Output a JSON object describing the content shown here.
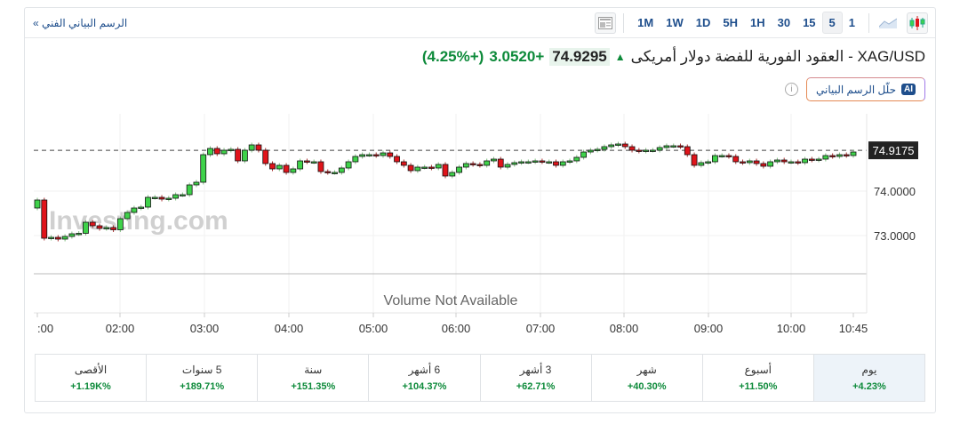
{
  "header": {
    "technical_chart_link": "الرسم البياني الفني »",
    "timeframes": [
      "1M",
      "1W",
      "1D",
      "5H",
      "1H",
      "30",
      "15",
      "5",
      "1"
    ],
    "active_timeframe": "5"
  },
  "instrument": {
    "title": "XAG/USD - العقود الفورية للفضة دولار أمريكى",
    "price": "74.9295",
    "change": "+3.0520",
    "change_pct": "(+4.25%)",
    "direction_icon": "arrow-up-icon"
  },
  "ai_button": {
    "badge": "AI",
    "label": "حلّل الرسم البياني"
  },
  "colors": {
    "up": "#0d8a3a",
    "candle_up": "#3fd24a",
    "candle_down": "#e0141b",
    "link": "#1e4e8c"
  },
  "chart_data": {
    "type": "candlestick",
    "current_price_label": "74.9175",
    "current_price": 74.9175,
    "y_ticks": [
      {
        "value": 74,
        "label": "74.0000"
      },
      {
        "value": 73,
        "label": "73.0000"
      }
    ],
    "ylim": [
      72.14,
      75.74
    ],
    "x_ticks": [
      ":00",
      "02:00",
      "03:00",
      "04:00",
      "05:00",
      "06:00",
      "07:00",
      "08:00",
      "09:00",
      "10:00",
      "10:45"
    ],
    "volume_text": "Volume Not Available",
    "watermark": "Investing.com",
    "first_open": 73.62,
    "closes": [
      73.8,
      72.94,
      72.96,
      72.92,
      72.98,
      73.04,
      73.05,
      73.3,
      73.22,
      73.16,
      73.18,
      73.13,
      73.38,
      73.52,
      73.62,
      73.64,
      73.86,
      73.86,
      73.82,
      73.84,
      73.92,
      73.92,
      74.14,
      74.2,
      74.82,
      74.96,
      74.84,
      74.92,
      74.94,
      74.68,
      74.92,
      75.04,
      74.92,
      74.62,
      74.5,
      74.58,
      74.42,
      74.5,
      74.68,
      74.66,
      74.66,
      74.44,
      74.42,
      74.42,
      74.52,
      74.66,
      74.78,
      74.82,
      74.82,
      74.8,
      74.86,
      74.78,
      74.66,
      74.58,
      74.46,
      74.54,
      74.54,
      74.52,
      74.6,
      74.34,
      74.42,
      74.54,
      74.62,
      74.6,
      74.58,
      74.68,
      74.72,
      74.54,
      74.6,
      74.64,
      74.66,
      74.66,
      74.68,
      74.66,
      74.66,
      74.58,
      74.66,
      74.68,
      74.76,
      74.88,
      74.92,
      74.94,
      75.0,
      75.04,
      75.06,
      75.0,
      74.92,
      74.9,
      74.92,
      74.92,
      74.98,
      75.02,
      75.02,
      75.0,
      74.82,
      74.58,
      74.64,
      74.66,
      74.8,
      74.8,
      74.78,
      74.66,
      74.64,
      74.68,
      74.62,
      74.56,
      74.66,
      74.7,
      74.66,
      74.66,
      74.64,
      74.72,
      74.7,
      74.72,
      74.8,
      74.78,
      74.82,
      74.8,
      74.88
    ]
  },
  "stats": [
    {
      "label": "يوم",
      "value": "+4.23%"
    },
    {
      "label": "أسبوع",
      "value": "+11.50%"
    },
    {
      "label": "شهر",
      "value": "+40.30%"
    },
    {
      "label": "3 أشهر",
      "value": "+62.71%"
    },
    {
      "label": "6 أشهر",
      "value": "+104.37%"
    },
    {
      "label": "سنة",
      "value": "+151.35%"
    },
    {
      "label": "5 سنوات",
      "value": "+189.71%"
    },
    {
      "label": "الأقصى",
      "value": "+1.19K%"
    }
  ]
}
